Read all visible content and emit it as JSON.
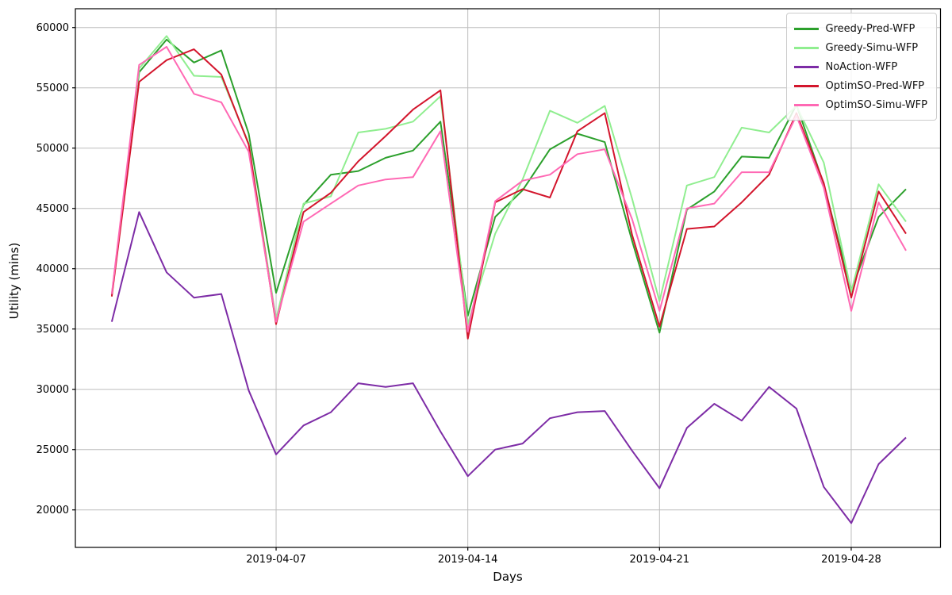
{
  "chart_data": {
    "type": "line",
    "title": "",
    "xlabel": "Days",
    "ylabel": "Utility (mins)",
    "grid": true,
    "legend_position": "upper right",
    "ylim": [
      16890,
      61560
    ],
    "x_index_lim": [
      -0.33,
      31.26
    ],
    "ytick_values": [
      20000,
      25000,
      30000,
      35000,
      40000,
      45000,
      50000,
      55000,
      60000
    ],
    "ytick_labels": [
      "20000",
      "25000",
      "30000",
      "35000",
      "40000",
      "45000",
      "50000",
      "55000",
      "60000"
    ],
    "xticks": [
      {
        "day": 7,
        "label": "2019-04-07"
      },
      {
        "day": 14,
        "label": "2019-04-14"
      },
      {
        "day": 21,
        "label": "2019-04-21"
      },
      {
        "day": 28,
        "label": "2019-04-28"
      }
    ],
    "dates": [
      "2019-04-01",
      "2019-04-02",
      "2019-04-03",
      "2019-04-04",
      "2019-04-05",
      "2019-04-06",
      "2019-04-07",
      "2019-04-08",
      "2019-04-09",
      "2019-04-10",
      "2019-04-11",
      "2019-04-12",
      "2019-04-13",
      "2019-04-14",
      "2019-04-15",
      "2019-04-16",
      "2019-04-17",
      "2019-04-18",
      "2019-04-19",
      "2019-04-20",
      "2019-04-21",
      "2019-04-22",
      "2019-04-23",
      "2019-04-24",
      "2019-04-25",
      "2019-04-26",
      "2019-04-27",
      "2019-04-28",
      "2019-04-29",
      "2019-04-30"
    ],
    "series": [
      {
        "name": "Greedy-Pred-WFP",
        "color": "#2ca02c",
        "values": [
          37800,
          56300,
          59000,
          57100,
          58100,
          51200,
          38000,
          45300,
          47800,
          48100,
          49200,
          49800,
          52200,
          36100,
          44300,
          46500,
          49900,
          51200,
          50500,
          42300,
          34700,
          44900,
          46400,
          49300,
          49200,
          53600,
          47000,
          38200,
          44300,
          46600
        ]
      },
      {
        "name": "Greedy-Simu-WFP",
        "color": "#90ee90",
        "values": [
          37800,
          56600,
          59300,
          56000,
          55900,
          50400,
          35800,
          45400,
          46000,
          51300,
          51600,
          52200,
          54300,
          35400,
          42900,
          47400,
          53100,
          52100,
          53500,
          45800,
          37300,
          46900,
          47600,
          51700,
          51300,
          53500,
          48800,
          38100,
          47000,
          43900
        ]
      },
      {
        "name": "NoAction-WFP",
        "color": "#7d2ca6",
        "values": [
          35600,
          44700,
          39700,
          37600,
          37900,
          29900,
          24600,
          27000,
          28100,
          30500,
          30200,
          30500,
          26500,
          22800,
          25000,
          25500,
          27600,
          28100,
          28200,
          24900,
          21800,
          26800,
          28800,
          27400,
          30200,
          28400,
          21900,
          18900,
          23800,
          26000
        ]
      },
      {
        "name": "OptimSO-Pred-WFP",
        "color": "#d3152c",
        "values": [
          37700,
          55500,
          57300,
          58200,
          56100,
          50300,
          35400,
          44700,
          46300,
          48900,
          51000,
          53200,
          54800,
          34200,
          45500,
          46600,
          45900,
          51400,
          52900,
          42800,
          35200,
          43300,
          43500,
          45500,
          47800,
          52900,
          47100,
          37600,
          46400,
          42900
        ]
      },
      {
        "name": "OptimSO-Simu-WFP",
        "color": "#ff69b4",
        "values": [
          37900,
          56900,
          58400,
          54500,
          53800,
          49700,
          35600,
          43900,
          45400,
          46900,
          47400,
          47600,
          51400,
          34800,
          45600,
          47300,
          47800,
          49500,
          49900,
          44100,
          36500,
          45000,
          45400,
          48000,
          48000,
          52700,
          46700,
          36500,
          45500,
          41500
        ]
      }
    ],
    "style": {
      "grid_color": "#bdbdbd",
      "spine_color": "#000000",
      "tick_label_color": "#000000",
      "line_width": 2
    }
  }
}
